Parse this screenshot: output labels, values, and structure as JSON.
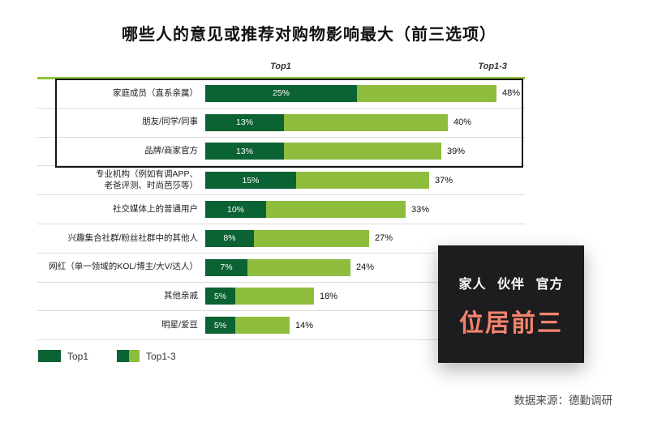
{
  "title": "哪些人的意见或推荐对购物影响最大（前三选项）",
  "source": "数据来源：德勤调研",
  "colors": {
    "top1_dark_green": "#0B6233",
    "top13_light_green": "#8EBD3E",
    "top_rule_green": "#8CC63F",
    "callout_bg": "#1D1D1F",
    "callout_accent": "#F4836D"
  },
  "legend": {
    "items": [
      {
        "label": "Top1"
      },
      {
        "label": "Top1-3"
      }
    ]
  },
  "callout": {
    "keywords": "家人 伙伴 官方",
    "headline": "位居前三"
  },
  "chart_data": {
    "type": "bar",
    "orientation": "horizontal",
    "title": "哪些人的意见或推荐对购物影响最大（前三选项）",
    "col_headers": [
      "Top1",
      "Top1-3"
    ],
    "categories": [
      "家庭成员（直系亲属）",
      "朋友/同学/同事",
      "品牌/商家官方",
      "专业机构（例如有调APP、\n老爸评测、时尚芭莎等）",
      "社交媒体上的普通用户",
      "兴趣集合社群/粉丝社群中的其他人",
      "网红（单一领域的KOL/博主/大V/达人）",
      "其他亲戚",
      "明星/爱豆"
    ],
    "series": [
      {
        "name": "Top1",
        "values": [
          25,
          13,
          13,
          15,
          10,
          8,
          7,
          5,
          5
        ]
      },
      {
        "name": "Top1-3",
        "values": [
          48,
          40,
          39,
          37,
          33,
          27,
          24,
          18,
          14
        ]
      }
    ],
    "value_suffix": "%",
    "highlighted_rows": [
      0,
      1,
      2
    ],
    "xlim": [
      0,
      52.7
    ],
    "grid": false,
    "legend_position": "bottom-left"
  }
}
